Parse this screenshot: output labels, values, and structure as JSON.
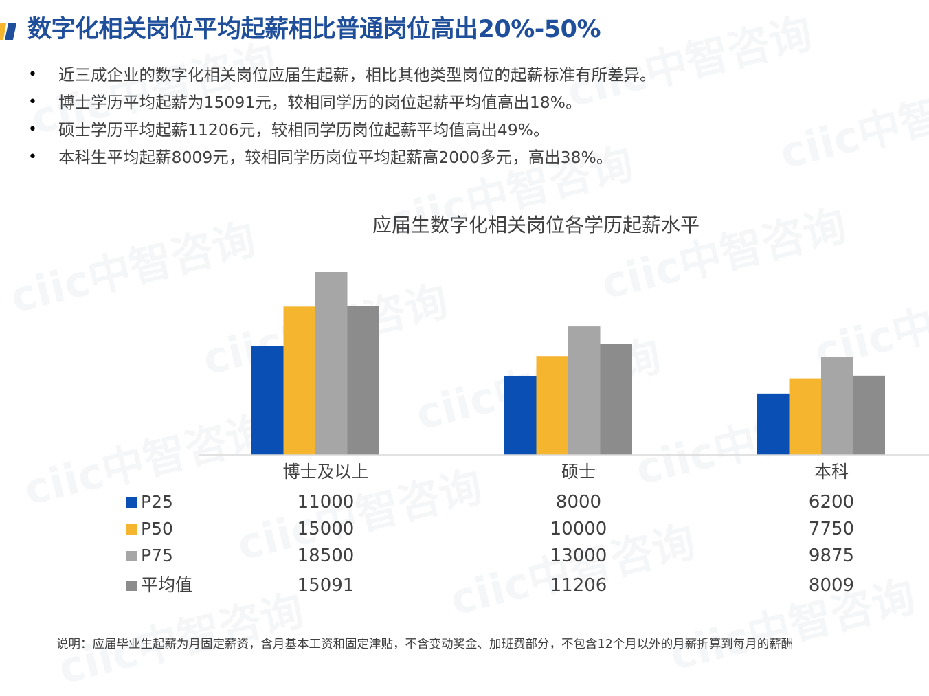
{
  "title": "数字化相关岗位平均起薪相比普通岗位高出20%-50%",
  "bullets": [
    "近三成企业的数字化相关岗位应届生起薪，相比其他类型岗位的起薪标准有所差异。",
    "博士学历平均起薪为15091元，较相同学历的岗位起薪平均值高出18%。",
    "硕士学历平均起薪11206元，较相同学历岗位起薪平均值高出49%。",
    "本科生平均起薪8009元，较相同学历岗位平均起薪高2000多元，高出38%。"
  ],
  "bullet_symbol": "•",
  "footnote": "说明：应届毕业生起薪为月固定薪资，含月基本工资和固定津贴，不含变动奖金、加班费部分，不包含12个月以外的月薪折算到每月的薪酬",
  "watermark_text": "ciic中智咨询",
  "colors": {
    "title": "#1f4e9a",
    "stripe_blue": "#1f4e9a",
    "stripe_yellow": "#f5b52e",
    "P25": "#0a50b4",
    "P50": "#f5b52e",
    "P75": "#a6a6a6",
    "avg": "#8c8c8c"
  },
  "chart_data": {
    "type": "bar",
    "title": "应届生数字化相关岗位各学历起薪水平",
    "categories": [
      "博士及以上",
      "硕士",
      "本科"
    ],
    "series": [
      {
        "name": "P25",
        "values": [
          11000,
          8000,
          6200
        ],
        "color": "#0a50b4"
      },
      {
        "name": "P50",
        "values": [
          15000,
          10000,
          7750
        ],
        "color": "#f5b52e"
      },
      {
        "name": "P75",
        "values": [
          18500,
          13000,
          9875
        ],
        "color": "#a6a6a6"
      },
      {
        "name": "平均值",
        "values": [
          15091,
          11206,
          8009
        ],
        "color": "#8c8c8c"
      }
    ],
    "ylim": [
      0,
      18500
    ],
    "grid": false,
    "legend": "data-table-bottom",
    "data_table": true
  }
}
